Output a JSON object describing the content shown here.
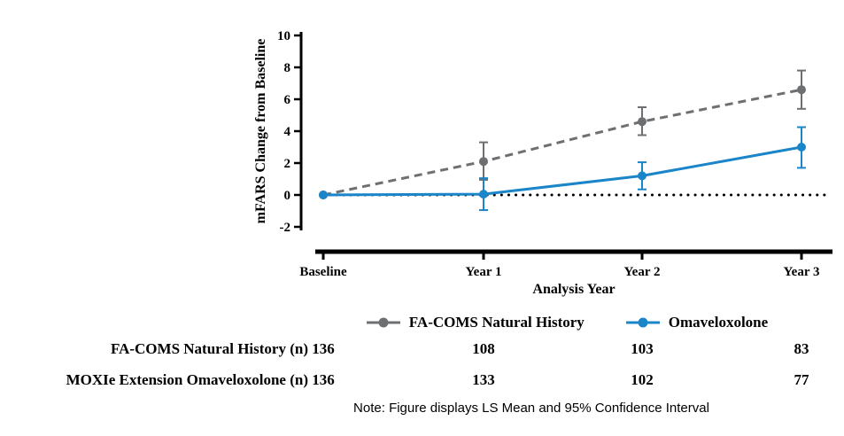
{
  "chart_data": {
    "type": "line",
    "title": "",
    "xlabel": "Analysis Year",
    "ylabel": "mFARS Change from Baseline",
    "categories": [
      "Baseline",
      "Year 1",
      "Year 2",
      "Year 3"
    ],
    "ylim": [
      -2,
      10
    ],
    "yticks": [
      10,
      8,
      6,
      4,
      2,
      0,
      -2
    ],
    "grid": false,
    "legend_position": "bottom",
    "zero_reference_line": true,
    "series": [
      {
        "name": "FA-COMS Natural History",
        "color": "#6e6f72",
        "style": "dashed",
        "values": [
          0,
          2.1,
          4.6,
          6.6
        ],
        "ci_lower": [
          0,
          0.95,
          3.75,
          5.4
        ],
        "ci_upper": [
          0,
          3.3,
          5.5,
          7.8
        ]
      },
      {
        "name": "Omaveloxolone",
        "color": "#1a85c8",
        "style": "solid",
        "values": [
          0,
          0.05,
          1.2,
          3.0
        ],
        "ci_lower": [
          0,
          -0.95,
          0.35,
          1.7
        ],
        "ci_upper": [
          0,
          1.05,
          2.05,
          4.25
        ]
      }
    ],
    "note": "Note: Figure displays LS Mean and 95% Confidence Interval"
  },
  "table": {
    "rows": [
      {
        "label": "FA-COMS Natural History (n)",
        "values": [
          "136",
          "108",
          "103",
          "83"
        ]
      },
      {
        "label": "MOXIe Extension Omaveloxolone (n)",
        "values": [
          "136",
          "133",
          "102",
          "77"
        ]
      }
    ]
  }
}
